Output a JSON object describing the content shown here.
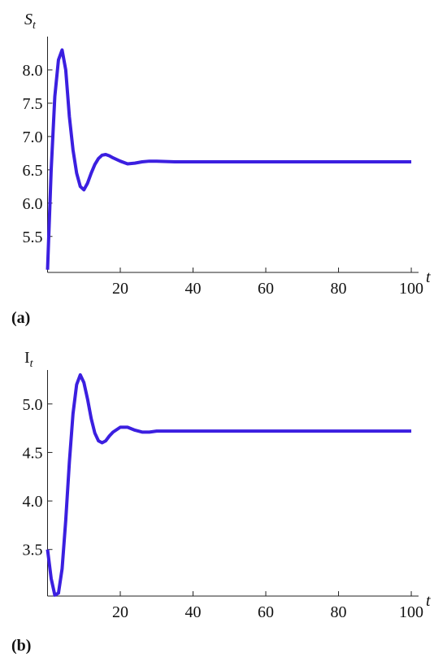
{
  "chart_data": [
    {
      "type": "line",
      "panel_label": "(a)",
      "y_label": "S",
      "y_label_sub": "t",
      "x_label": "t",
      "x": [
        0,
        1,
        2,
        3,
        4,
        5,
        6,
        7,
        8,
        9,
        10,
        11,
        12,
        13,
        14,
        15,
        16,
        17,
        18,
        20,
        22,
        24,
        26,
        28,
        30,
        35,
        40,
        50,
        100
      ],
      "series": [
        {
          "color": "#3b1fe0",
          "values": [
            5.0,
            6.5,
            7.6,
            8.15,
            8.3,
            8.0,
            7.3,
            6.8,
            6.45,
            6.25,
            6.2,
            6.3,
            6.45,
            6.58,
            6.67,
            6.72,
            6.73,
            6.71,
            6.68,
            6.63,
            6.59,
            6.6,
            6.62,
            6.63,
            6.63,
            6.62,
            6.62,
            6.62,
            6.62
          ]
        }
      ],
      "xlim": [
        0,
        102
      ],
      "xticks": [
        20,
        40,
        60,
        80,
        100
      ],
      "ylim": [
        4.96,
        8.5
      ],
      "yticks": [
        {
          "value": 5.5,
          "label": "5.5"
        },
        {
          "value": 6,
          "label": "6.0"
        },
        {
          "value": 6.5,
          "label": "6.5"
        },
        {
          "value": 7,
          "label": "7.0"
        },
        {
          "value": 7.5,
          "label": "7.5"
        },
        {
          "value": 8,
          "label": "8.0"
        }
      ]
    },
    {
      "type": "line",
      "panel_label": "(b)",
      "y_label": "I",
      "y_label_sub": "t",
      "x_label": "t",
      "x": [
        0,
        1,
        2,
        3,
        4,
        5,
        6,
        7,
        8,
        9,
        10,
        11,
        12,
        13,
        14,
        15,
        16,
        17,
        18,
        20,
        22,
        24,
        26,
        28,
        30,
        35,
        50,
        100
      ],
      "series": [
        {
          "color": "#3b1fe0",
          "values": [
            3.5,
            3.2,
            3.03,
            3.05,
            3.3,
            3.8,
            4.4,
            4.9,
            5.2,
            5.3,
            5.22,
            5.05,
            4.85,
            4.7,
            4.62,
            4.6,
            4.62,
            4.67,
            4.71,
            4.76,
            4.76,
            4.73,
            4.71,
            4.71,
            4.72,
            4.72,
            4.72,
            4.72
          ]
        }
      ],
      "xlim": [
        0,
        102
      ],
      "xticks": [
        20,
        40,
        60,
        80,
        100
      ],
      "ylim": [
        3.02,
        5.35
      ],
      "yticks": [
        {
          "value": 3.5,
          "label": "3.5"
        },
        {
          "value": 4,
          "label": "4.0"
        },
        {
          "value": 4.5,
          "label": "4.5"
        },
        {
          "value": 5,
          "label": "5.0"
        }
      ]
    }
  ]
}
